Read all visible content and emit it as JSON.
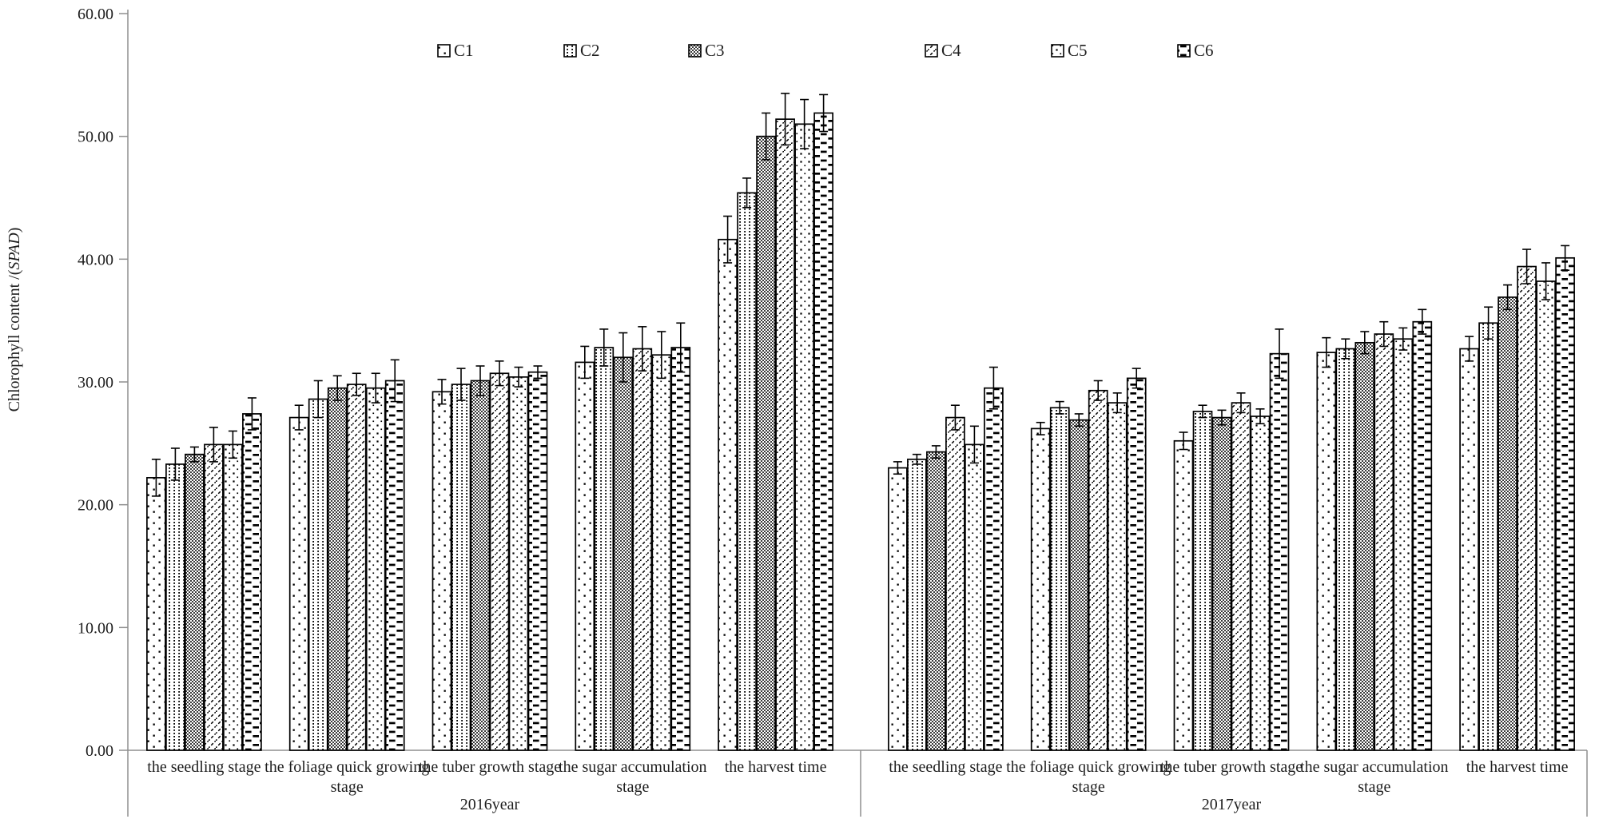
{
  "chart_data": {
    "type": "bar",
    "title": "",
    "ylabel_prefix": "Chlorophyll content /(",
    "ylabel_italic": "SPAD",
    "ylabel_suffix": ")",
    "ylim": [
      0,
      60
    ],
    "ytick_labels": [
      "0.00",
      "10.00",
      "20.00",
      "30.00",
      "40.00",
      "50.00",
      "60.00"
    ],
    "grid": false,
    "legend_position": "top",
    "error_bars": true,
    "categories": [
      "the seedling stage",
      "the foliage quick growing stage",
      "the tuber growth stage",
      "the sugar accumulation stage",
      "the harvest time"
    ],
    "panels": [
      {
        "label": "2016year",
        "key": "2016"
      },
      {
        "label": "2017year",
        "key": "2017"
      }
    ],
    "series": [
      {
        "name": "C1",
        "pattern": "dots-sparse",
        "values": {
          "2016": [
            22.2,
            27.1,
            29.2,
            31.6,
            41.6
          ],
          "2017": [
            23.0,
            26.2,
            25.2,
            32.4,
            32.7
          ]
        },
        "errors": {
          "2016": [
            1.5,
            1.0,
            1.0,
            1.3,
            1.9
          ],
          "2017": [
            0.5,
            0.5,
            0.7,
            1.2,
            1.0
          ]
        }
      },
      {
        "name": "C2",
        "pattern": "dots-fine-grid",
        "values": {
          "2016": [
            23.3,
            28.6,
            29.8,
            32.8,
            45.4
          ],
          "2017": [
            23.7,
            27.9,
            27.6,
            32.7,
            34.8
          ]
        },
        "errors": {
          "2016": [
            1.3,
            1.5,
            1.3,
            1.5,
            1.2
          ],
          "2017": [
            0.4,
            0.5,
            0.5,
            0.8,
            1.3
          ]
        }
      },
      {
        "name": "C3",
        "pattern": "dark-checker",
        "values": {
          "2016": [
            24.1,
            29.5,
            30.1,
            32.0,
            50.0
          ],
          "2017": [
            24.3,
            26.9,
            27.1,
            33.2,
            36.9
          ]
        },
        "errors": {
          "2016": [
            0.6,
            1.0,
            1.2,
            2.0,
            1.9
          ],
          "2017": [
            0.5,
            0.5,
            0.6,
            0.9,
            1.0
          ]
        }
      },
      {
        "name": "C4",
        "pattern": "diagonal-dashes",
        "values": {
          "2016": [
            24.9,
            29.8,
            30.7,
            32.7,
            51.4
          ],
          "2017": [
            27.1,
            29.3,
            28.3,
            33.9,
            39.4
          ]
        },
        "errors": {
          "2016": [
            1.4,
            0.9,
            1.0,
            1.8,
            2.1
          ],
          "2017": [
            1.0,
            0.8,
            0.8,
            1.0,
            1.4
          ]
        }
      },
      {
        "name": "C5",
        "pattern": "dots-medium",
        "values": {
          "2016": [
            24.9,
            29.5,
            30.4,
            32.2,
            51.0
          ],
          "2017": [
            24.9,
            28.3,
            27.2,
            33.5,
            38.2
          ]
        },
        "errors": {
          "2016": [
            1.1,
            1.2,
            0.8,
            1.9,
            2.0
          ],
          "2017": [
            1.5,
            0.8,
            0.6,
            0.9,
            1.5
          ]
        }
      },
      {
        "name": "C6",
        "pattern": "horizontal-dashes",
        "values": {
          "2016": [
            27.4,
            30.1,
            30.8,
            32.8,
            51.9
          ],
          "2017": [
            29.5,
            30.3,
            32.3,
            34.9,
            40.1
          ]
        },
        "errors": {
          "2016": [
            1.3,
            1.7,
            0.5,
            2.0,
            1.5
          ],
          "2017": [
            1.7,
            0.8,
            2.0,
            1.0,
            1.0
          ]
        }
      }
    ],
    "colors": {
      "bar_outline": "#000000",
      "axis_line": "#8f8f8f",
      "text": "#1f1f1f",
      "background": "#ffffff"
    }
  }
}
